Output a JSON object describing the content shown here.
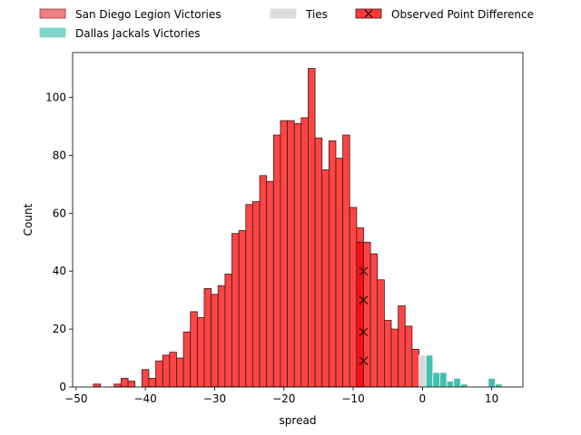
{
  "chart_data": {
    "type": "bar",
    "xlabel": "spread",
    "ylabel": "Count",
    "xlim": [
      -50.5,
      14.5
    ],
    "ylim": [
      0,
      115.5
    ],
    "x_ticks": [
      -50,
      -40,
      -30,
      -20,
      -10,
      0,
      10
    ],
    "x_tick_labels": [
      "−50",
      "−40",
      "−30",
      "−20",
      "−10",
      "0",
      "10"
    ],
    "y_ticks": [
      0,
      20,
      40,
      60,
      80,
      100
    ],
    "y_tick_labels": [
      "0",
      "20",
      "40",
      "60",
      "80",
      "100"
    ],
    "bin_width": 1,
    "legend": {
      "placement": "top, above plot",
      "entries": [
        {
          "label": "San Diego Legion Victories",
          "color": "#f07878"
        },
        {
          "label": "Dallas Jackals Victories",
          "color": "#7fd4c8"
        },
        {
          "label": "Ties",
          "color": "#dcdcdc"
        },
        {
          "label": "Observed Point Difference",
          "color": "#ff3030"
        }
      ]
    },
    "colors": {
      "legion": "#ff4444",
      "jackals": "#44bfb0",
      "ties": "#d9d9d9",
      "observed": "#ff1010"
    },
    "series": [
      {
        "name": "San Diego Legion Victories",
        "bins": [
          [
            -47,
            1
          ],
          [
            -44,
            1
          ],
          [
            -43,
            3
          ],
          [
            -42,
            2
          ],
          [
            -40,
            6
          ],
          [
            -39,
            3
          ],
          [
            -38,
            9
          ],
          [
            -37,
            11
          ],
          [
            -36,
            12
          ],
          [
            -35,
            10
          ],
          [
            -34,
            19
          ],
          [
            -33,
            26
          ],
          [
            -32,
            24
          ],
          [
            -31,
            34
          ],
          [
            -30,
            32
          ],
          [
            -29,
            35
          ],
          [
            -28,
            39
          ],
          [
            -27,
            53
          ],
          [
            -26,
            54
          ],
          [
            -25,
            63
          ],
          [
            -24,
            64
          ],
          [
            -23,
            73
          ],
          [
            -22,
            71
          ],
          [
            -21,
            87
          ],
          [
            -20,
            92
          ],
          [
            -19,
            92
          ],
          [
            -18,
            91
          ],
          [
            -17,
            93
          ],
          [
            -16,
            110
          ],
          [
            -15,
            86
          ],
          [
            -14,
            75
          ],
          [
            -13,
            85
          ],
          [
            -12,
            79
          ],
          [
            -11,
            87
          ],
          [
            -10,
            62
          ],
          [
            -9,
            55
          ],
          [
            -8,
            50
          ],
          [
            -7,
            46
          ],
          [
            -6,
            37
          ],
          [
            -5,
            23
          ],
          [
            -4,
            20
          ],
          [
            -3,
            28
          ],
          [
            -2,
            21
          ],
          [
            -1,
            13
          ],
          [
            0,
            7
          ]
        ]
      },
      {
        "name": "Ties",
        "bins": [
          [
            0,
            11
          ]
        ]
      },
      {
        "name": "Dallas Jackals Victories",
        "bins": [
          [
            1,
            11
          ],
          [
            2,
            5
          ],
          [
            3,
            5
          ],
          [
            4,
            2
          ],
          [
            5,
            3
          ],
          [
            6,
            1
          ],
          [
            10,
            3
          ],
          [
            11,
            1
          ]
        ]
      },
      {
        "name": "Observed Point Difference",
        "bins": [
          [
            -9,
            50
          ]
        ],
        "x_markers": [
          9,
          19,
          30,
          40
        ]
      }
    ]
  }
}
